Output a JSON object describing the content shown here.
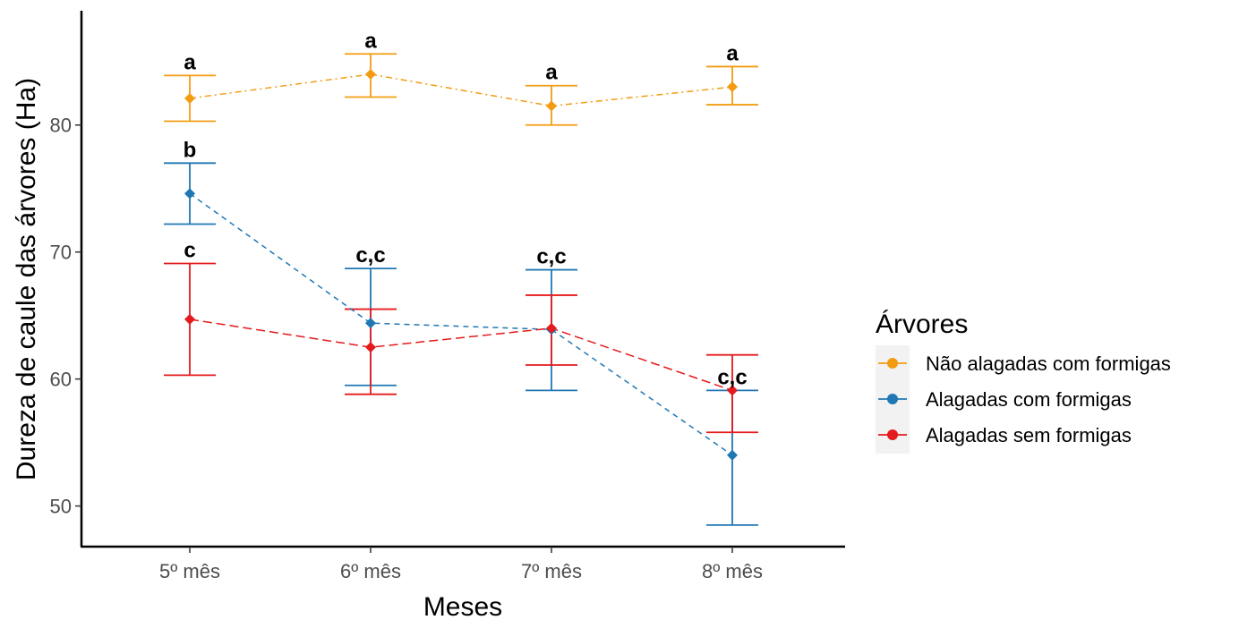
{
  "chart_data": {
    "type": "line",
    "xlabel": "Meses",
    "ylabel": "Dureza de caule das árvores (Ha)",
    "categories": [
      "5º mês",
      "6º mês",
      "7º mês",
      "8º mês"
    ],
    "ylim": [
      46.8,
      89.0
    ],
    "yticks": [
      50,
      60,
      70,
      80
    ],
    "grid": false,
    "legend": {
      "title": "Árvores",
      "placement": "right"
    },
    "series": [
      {
        "name": "Não alagadas com formigas",
        "color": "#F39C12",
        "line_style": "dotdash",
        "values": [
          82.1,
          84.0,
          81.5,
          83.0
        ],
        "err_low": [
          80.3,
          82.2,
          80.0,
          81.6
        ],
        "err_high": [
          83.9,
          85.6,
          83.1,
          84.6
        ],
        "labels": [
          "a",
          "a",
          "a",
          "a"
        ]
      },
      {
        "name": "Alagadas com formigas",
        "color": "#1F77B4",
        "line_style": "dashed",
        "values": [
          74.6,
          64.4,
          63.9,
          54.0
        ],
        "err_low": [
          72.2,
          59.5,
          59.1,
          48.5
        ],
        "err_high": [
          77.0,
          68.7,
          68.6,
          59.1
        ],
        "labels": [
          "b",
          "c,c",
          "c,c",
          "c,c"
        ]
      },
      {
        "name": "Alagadas sem formigas",
        "color": "#E41A1C",
        "line_style": "longdash",
        "values": [
          64.7,
          62.5,
          64.0,
          59.1
        ],
        "err_low": [
          60.3,
          58.8,
          61.1,
          55.8
        ],
        "err_high": [
          69.1,
          65.5,
          66.6,
          61.9
        ],
        "labels": [
          "c",
          "",
          "",
          ""
        ]
      }
    ]
  }
}
